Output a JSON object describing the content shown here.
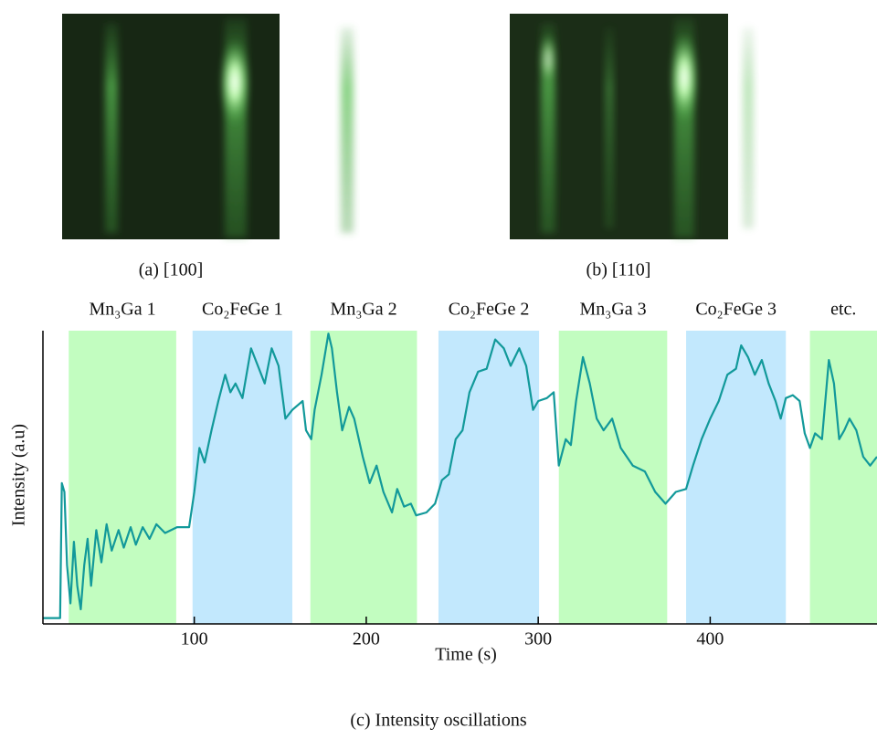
{
  "panels": [
    {
      "caption": "(a) [100]"
    },
    {
      "caption": "(b) [110]"
    }
  ],
  "caption": "(c) Intensity oscillations",
  "chart_data": {
    "type": "line",
    "xlabel": "Time (s)",
    "ylabel": "Intensity (a.u)",
    "xlim": [
      12,
      497
    ],
    "ylim": [
      0,
      100
    ],
    "xticks": [
      100,
      200,
      300,
      400
    ],
    "color": "#12999a",
    "regions": [
      {
        "label": "Mn₃Ga 1",
        "start": 27,
        "end": 89.5,
        "color": "#c2fdc0"
      },
      {
        "label": "Co₂FeGe 1",
        "start": 99,
        "end": 157,
        "color": "#c2e8fd"
      },
      {
        "label": "Mn₃Ga 2",
        "start": 167.5,
        "end": 229.5,
        "color": "#c2fdc0"
      },
      {
        "label": "Co₂FeGe 2",
        "start": 242,
        "end": 300.5,
        "color": "#c2e8fd"
      },
      {
        "label": "Mn₃Ga 3",
        "start": 312,
        "end": 375,
        "color": "#c2fdc0"
      },
      {
        "label": "Co₂FeGe 3",
        "start": 386,
        "end": 444,
        "color": "#c2e8fd"
      },
      {
        "label": "etc.",
        "start": 458,
        "end": 497,
        "color": "#c2fdc0"
      }
    ],
    "x": [
      12,
      22,
      23,
      24.5,
      26,
      28,
      30,
      32,
      34,
      36,
      38,
      40,
      43,
      46,
      49,
      52,
      56,
      59,
      63,
      66,
      70,
      74,
      78,
      83,
      90,
      97,
      100,
      103,
      106,
      110,
      114,
      118,
      121,
      124,
      128,
      133,
      137,
      141,
      145,
      149,
      153,
      157,
      163,
      165,
      168,
      170,
      174,
      178,
      180,
      183,
      186,
      190,
      193,
      198,
      202,
      206,
      210,
      215,
      218,
      222,
      226,
      229,
      235,
      240,
      244,
      248,
      252,
      256,
      260,
      265,
      270,
      275,
      280,
      284,
      289,
      293,
      297,
      300,
      305,
      309,
      312,
      316,
      319,
      322,
      326,
      330,
      334,
      338,
      343,
      348,
      355,
      362,
      368,
      374,
      380,
      386,
      390,
      395,
      400,
      405,
      410,
      415,
      418,
      422,
      426,
      430,
      434,
      438,
      441,
      444,
      448,
      452,
      455,
      458,
      461,
      465,
      469,
      472,
      475,
      478,
      481,
      485,
      489,
      493,
      497
    ],
    "values": [
      2,
      2,
      48,
      45,
      20,
      7,
      28,
      13,
      5,
      20,
      29,
      13,
      32,
      21,
      34,
      25,
      32,
      26,
      33,
      27,
      33,
      29,
      34,
      31,
      33,
      33,
      45,
      60,
      55,
      66,
      76,
      85,
      79,
      82,
      77,
      94,
      88,
      82,
      94,
      88,
      70,
      73,
      76,
      66,
      63,
      73,
      85,
      99,
      94,
      79,
      66,
      74,
      70,
      57,
      48,
      54,
      45,
      38,
      46,
      40,
      41,
      37,
      38,
      41,
      49,
      51,
      63,
      66,
      79,
      86,
      87,
      97,
      94,
      88,
      94,
      88,
      73,
      76,
      77,
      79,
      54,
      63,
      61,
      76,
      91,
      82,
      70,
      66,
      70,
      60,
      54,
      52,
      45,
      41,
      45,
      46,
      54,
      63,
      70,
      76,
      85,
      87,
      95,
      91,
      85,
      90,
      82,
      76,
      70,
      77,
      78,
      76,
      65,
      60,
      65,
      63,
      90,
      82,
      63,
      66,
      70,
      66,
      57,
      54,
      57
    ]
  }
}
